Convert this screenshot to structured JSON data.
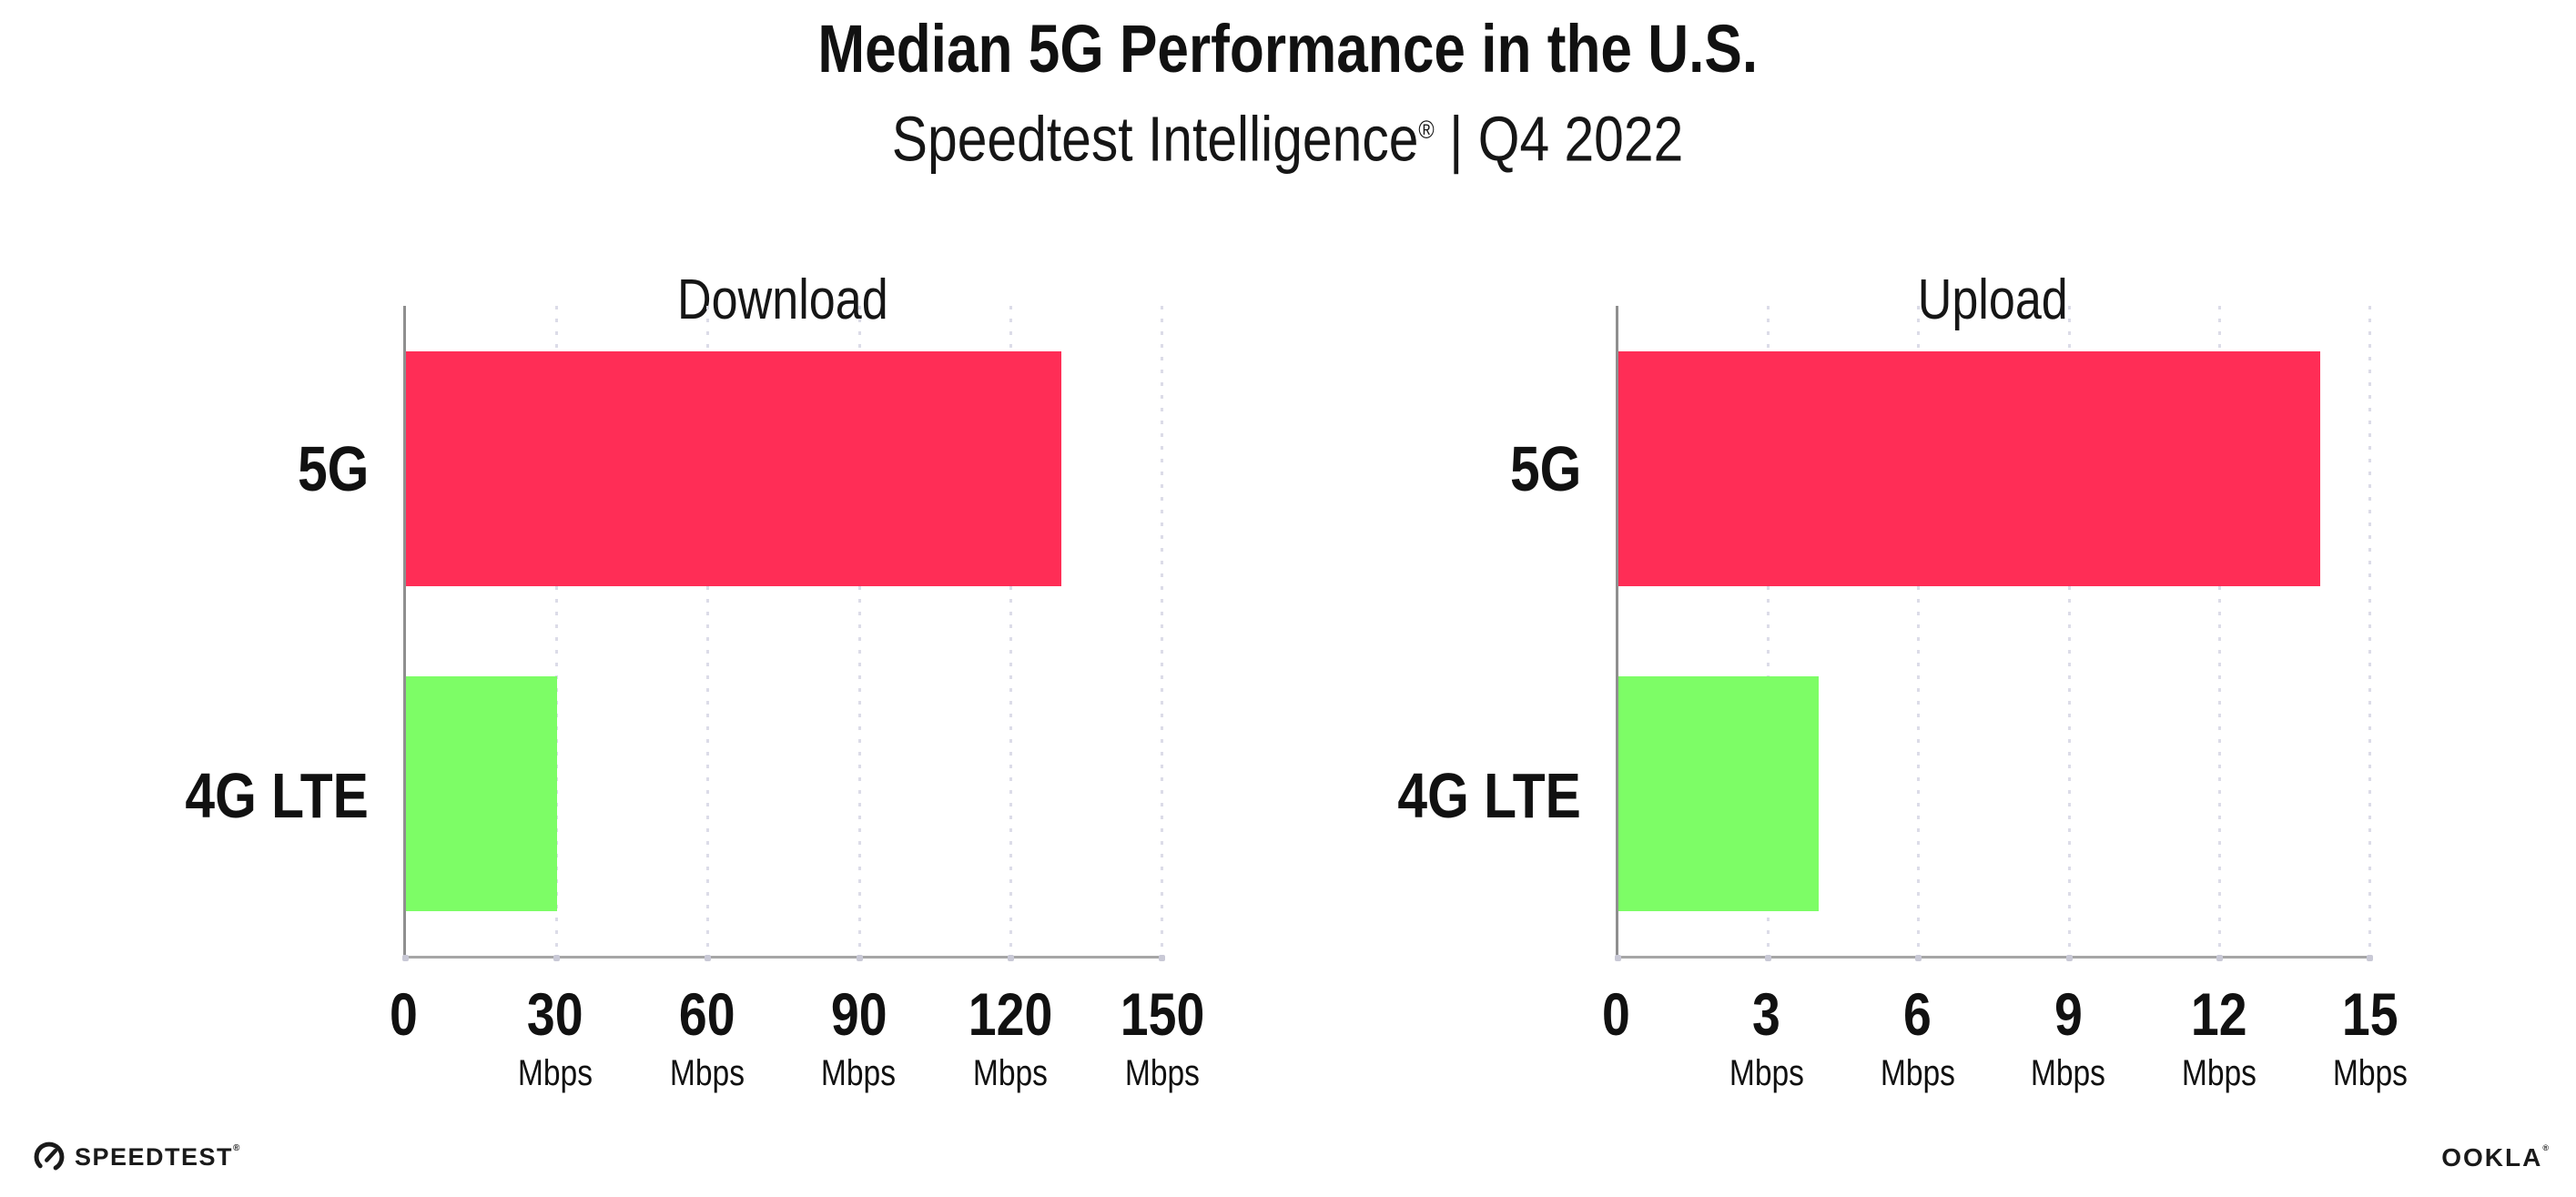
{
  "header": {
    "title": "Median 5G Performance in the U.S.",
    "subtitle_brand": "Speedtest Intelligence",
    "subtitle_registered": "®",
    "subtitle_period": " | Q4 2022"
  },
  "chart_data": [
    {
      "type": "bar",
      "orientation": "horizontal",
      "title": "Download",
      "categories": [
        "5G",
        "4G LTE"
      ],
      "values": [
        130,
        30
      ],
      "unit": "Mbps",
      "xlim": [
        0,
        150
      ],
      "xticks": [
        0,
        30,
        60,
        90,
        120,
        150
      ],
      "grid": "dotted vertical gridlines at each tick",
      "legend": "none",
      "bar_colors": [
        "#FF2D56",
        "#7DFD66"
      ]
    },
    {
      "type": "bar",
      "orientation": "horizontal",
      "title": "Upload",
      "categories": [
        "5G",
        "4G LTE"
      ],
      "values": [
        14,
        4
      ],
      "unit": "Mbps",
      "xlim": [
        0,
        15
      ],
      "xticks": [
        0,
        3,
        6,
        9,
        12,
        15
      ],
      "grid": "dotted vertical gridlines at each tick",
      "legend": "none",
      "bar_colors": [
        "#FF2D56",
        "#7DFD66"
      ]
    }
  ],
  "footer": {
    "speedtest_logo_text": "SPEEDTEST",
    "speedtest_registered": "®",
    "ookla_logo_text": "OOKLA",
    "ookla_registered": "®"
  },
  "colors": {
    "background": "#FFFFFF",
    "bar_5g": "#FF2D56",
    "bar_4g_lte": "#7DFD66",
    "y_axis_line": "#8F8F8F",
    "x_axis_line": "#A6A6A6",
    "gridline": "#DCDCE8",
    "text": "#111111"
  }
}
